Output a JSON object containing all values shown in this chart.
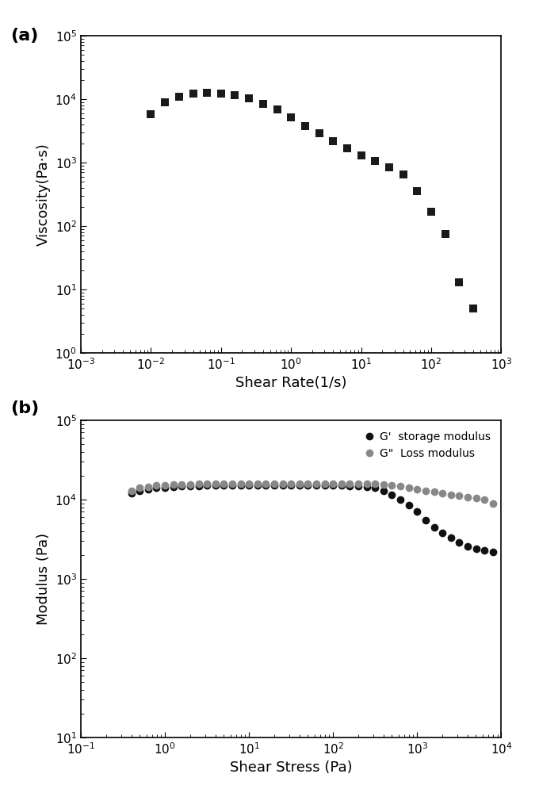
{
  "panel_a": {
    "xlabel": "Shear Rate(1/s)",
    "ylabel": "Viscosity(Pa·s)",
    "xlim_log": [
      -3,
      3
    ],
    "ylim_log": [
      0,
      5
    ],
    "marker": "s",
    "color": "#1a1a1a",
    "markersize": 7,
    "x": [
      0.01,
      0.0158,
      0.025,
      0.04,
      0.063,
      0.1,
      0.158,
      0.251,
      0.398,
      0.631,
      1.0,
      1.585,
      2.512,
      3.981,
      6.31,
      10.0,
      15.85,
      25.12,
      39.81,
      63.1,
      100.0,
      158.5,
      251.2,
      398.1
    ],
    "y": [
      5800,
      8800,
      11000,
      12200,
      12500,
      12200,
      11500,
      10200,
      8500,
      6800,
      5100,
      3800,
      2900,
      2200,
      1700,
      1300,
      1050,
      850,
      650,
      350,
      170,
      75,
      13,
      5
    ]
  },
  "panel_b": {
    "xlabel": "Shear Stress (Pa)",
    "ylabel": "Modulus (Pa)",
    "xlim_log": [
      -1,
      4
    ],
    "ylim_log": [
      1,
      5
    ],
    "g_prime": {
      "label": "G'  storage modulus",
      "color": "#111111",
      "x": [
        0.4,
        0.5,
        0.631,
        0.794,
        1.0,
        1.259,
        1.585,
        2.0,
        2.512,
        3.162,
        3.981,
        5.012,
        6.31,
        7.943,
        10.0,
        12.59,
        15.85,
        19.95,
        25.12,
        31.62,
        39.81,
        50.12,
        63.1,
        79.43,
        100.0,
        125.9,
        158.5,
        199.5,
        251.2,
        316.2,
        398.1,
        501.2,
        631.0,
        794.3,
        1000.0,
        1259.0,
        1585.0,
        1995.0,
        2512.0,
        3162.0,
        3981.0,
        5012.0,
        6310.0,
        7943.0
      ],
      "y": [
        12000,
        13000,
        13500,
        14000,
        14200,
        14500,
        14700,
        14800,
        14900,
        15000,
        15000,
        15000,
        15000,
        15000,
        15000,
        15000,
        15000,
        15000,
        15000,
        15000,
        15000,
        15000,
        15000,
        15000,
        15000,
        15000,
        14900,
        14800,
        14500,
        14000,
        13000,
        11500,
        10000,
        8500,
        7000,
        5500,
        4500,
        3800,
        3300,
        2900,
        2600,
        2400,
        2300,
        2200
      ]
    },
    "g_double_prime": {
      "label": "G\"  Loss modulus",
      "color": "#888888",
      "x": [
        0.4,
        0.5,
        0.631,
        0.794,
        1.0,
        1.259,
        1.585,
        2.0,
        2.512,
        3.162,
        3.981,
        5.012,
        6.31,
        7.943,
        10.0,
        12.59,
        15.85,
        19.95,
        25.12,
        31.62,
        39.81,
        50.12,
        63.1,
        79.43,
        100.0,
        125.9,
        158.5,
        199.5,
        251.2,
        316.2,
        398.1,
        501.2,
        631.0,
        794.3,
        1000.0,
        1259.0,
        1585.0,
        1995.0,
        2512.0,
        3162.0,
        3981.0,
        5012.0,
        6310.0,
        7943.0
      ],
      "y": [
        13000,
        14000,
        14500,
        15000,
        15200,
        15400,
        15500,
        15600,
        15700,
        15800,
        15800,
        15800,
        15800,
        15800,
        15800,
        15800,
        15800,
        15800,
        15800,
        15800,
        15800,
        15800,
        15800,
        15800,
        15800,
        15800,
        15800,
        15800,
        15800,
        15700,
        15500,
        15200,
        14800,
        14200,
        13500,
        13000,
        12500,
        12000,
        11500,
        11200,
        10800,
        10500,
        10000,
        9000
      ]
    }
  },
  "label_fontsize": 13,
  "tick_fontsize": 11,
  "panel_label_fontsize": 16
}
